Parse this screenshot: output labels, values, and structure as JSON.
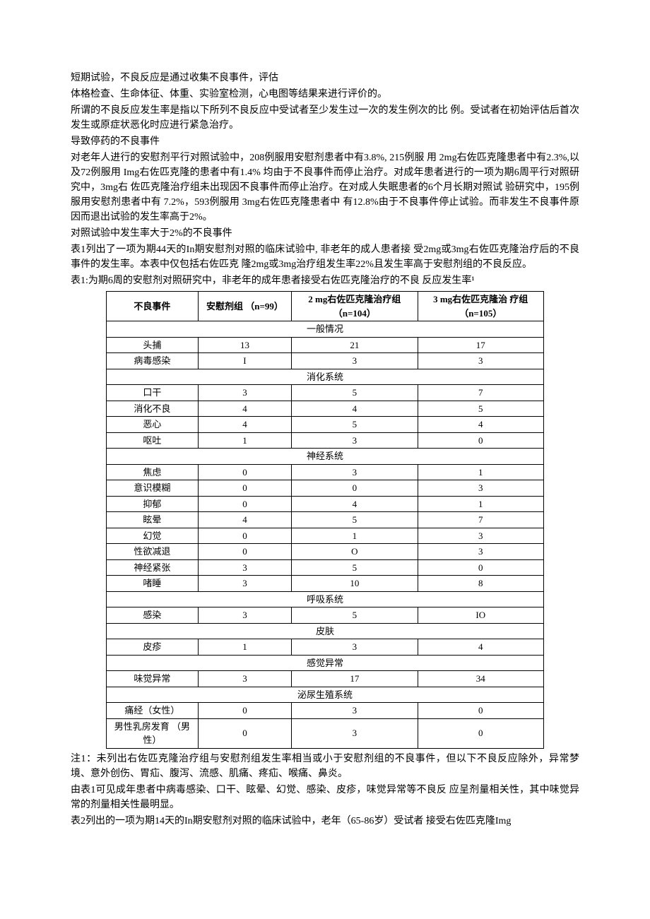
{
  "paragraphs": {
    "p1": "短期试验，不良反应是通过收集不良事件，评估",
    "p2": "体格检查、生命体征、体重、实验室检测，心电图等结果来进行评价的。",
    "p3": "所谓的不良反应发生率是指以下所列不良反应中受试者至少发生过一次的发生例次的比 例。受试者在初始评估后首次发生或原症状恶化时应进行紧急治疗。",
    "p4": "导致停药的不良事件",
    "p5": "对老年人进行的安慰剂平行对照试验中，208例服用安慰剂患者中有3.8%, 215例服 用 2mg右佐匹克隆患者中有2.3%,以及72例服用 Img右佐匹克隆的患者中有1.4% 均由于不良事件而停止治疗。对成年患者进行的一项为期6周平行对照研究中，3mg右 佐匹克隆治疗组未出现因不良事件而停止治疗。在对成人失眠患者的6个月长期对照试 验研究中，195例服用安慰剂患者中有 7.2%，593例服用 3mg右佐匹克隆患者中 有12.8%由于不良事件停止试验。而非发生不良事件原因而退出试验的发生率高于2%。",
    "p6": "对照试验中发生率大于2%的不良事件",
    "p7": "表1列出了一项为期44天的In期安慰剂对照的临床试验中, 非老年的成人患者接 受2mg或3mg右佐匹克隆治疗后的不良事件的发生率。本表中仅包括右佐匹克 隆2mg或3mg治疗组发生率22%且发生率高于安慰剂组的不良反应。",
    "p8": "表1:为期6周的安慰剂对照研究中，非老年的成年患者接受右佐匹克隆治疗的不良 反应发生率¹",
    "note1": "注1：未列出右佐匹克隆治疗组与安慰剂组发生率相当或小于安慰剂组的不良事件，但以下不良反应除外，异常梦境、意外创伤、胃疝、腹泻、流感、肌痛、疼疝、喉痛、鼻炎。",
    "note2": "由表1可见成年患者中病毒感染、口干、眩晕、幻觉、感染、皮疹，味觉异常等不良反 应呈剂量相关性，其中味觉异常的剂量相关性最明显。",
    "note3": "表2列出的一项为期14天的In期安慰剂对照的临床试验中，老年（65-86岁）受试者 接受右佐匹克隆Img"
  },
  "table1": {
    "headers": {
      "event": "不良事件",
      "placebo": "安慰剂组 （n=99）",
      "dose2mg": "2 mg右佐匹克隆治疗组（n=104）",
      "dose3mg": "3 mg右佐匹克隆治 疗组（n=105）"
    },
    "sections": [
      {
        "title": "一般情况",
        "rows": [
          {
            "event": "头捕",
            "placebo": "13",
            "d2": "21",
            "d3": "17"
          },
          {
            "event": "病毒感染",
            "placebo": "I",
            "d2": "3",
            "d3": "3"
          }
        ]
      },
      {
        "title": "消化系统",
        "rows": [
          {
            "event": "口干",
            "placebo": "3",
            "d2": "5",
            "d3": "7"
          },
          {
            "event": "消化不良",
            "placebo": "4",
            "d2": "4",
            "d3": "5"
          },
          {
            "event": "恶心",
            "placebo": "4",
            "d2": "5",
            "d3": "4"
          },
          {
            "event": "呕吐",
            "placebo": "1",
            "d2": "3",
            "d3": "0"
          }
        ]
      },
      {
        "title": "神经系统",
        "rows": [
          {
            "event": "焦虑",
            "placebo": "0",
            "d2": "3",
            "d3": "1"
          },
          {
            "event": "意识模糊",
            "placebo": "0",
            "d2": "0",
            "d3": "3"
          },
          {
            "event": "抑郁",
            "placebo": "0",
            "d2": "4",
            "d3": "1"
          },
          {
            "event": "眩晕",
            "placebo": "4",
            "d2": "5",
            "d3": "7"
          },
          {
            "event": "幻觉",
            "placebo": "0",
            "d2": "1",
            "d3": "3"
          },
          {
            "event": "性欲减退",
            "placebo": "0",
            "d2": "O",
            "d3": "3"
          },
          {
            "event": "神经紧张",
            "placebo": "3",
            "d2": "5",
            "d3": "0"
          },
          {
            "event": "啫睡",
            "placebo": "3",
            "d2": "10",
            "d3": "8"
          }
        ]
      },
      {
        "title": "呼吸系统",
        "rows": [
          {
            "event": "感染",
            "placebo": "3",
            "d2": "5",
            "d3": "IO"
          }
        ]
      },
      {
        "title": "皮肤",
        "rows": [
          {
            "event": "皮疹",
            "placebo": "1",
            "d2": "3",
            "d3": "4"
          }
        ]
      },
      {
        "title": "感觉异常",
        "rows": [
          {
            "event": "味觉异常",
            "placebo": "3",
            "d2": "17",
            "d3": "34"
          }
        ]
      },
      {
        "title": "泌尿生殖系统",
        "rows": [
          {
            "event": "痛经（女性）",
            "placebo": "0",
            "d2": "3",
            "d3": "0"
          },
          {
            "event": "男性乳房发育 （男性）",
            "placebo": "0",
            "d2": "3",
            "d3": "0"
          }
        ]
      }
    ]
  }
}
